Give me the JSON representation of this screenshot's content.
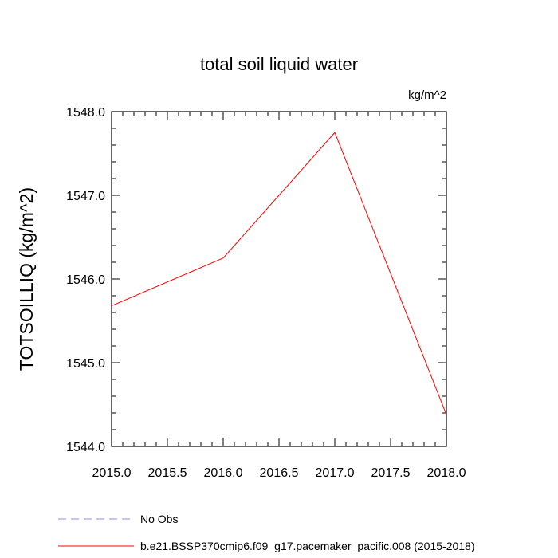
{
  "chart_data": {
    "type": "line",
    "title": "total soil liquid water",
    "units": "kg/m^2",
    "xlabel": "",
    "ylabel": "TOTSOILLIQ  (kg/m^2)",
    "xlim": [
      2015.0,
      2018.0
    ],
    "ylim": [
      1544.0,
      1548.0
    ],
    "xticks": [
      2015.0,
      2015.5,
      2016.0,
      2016.5,
      2017.0,
      2017.5,
      2018.0
    ],
    "xtick_labels": [
      "2015.0",
      "2015.5",
      "2016.0",
      "2016.5",
      "2017.0",
      "2017.5",
      "2018.0"
    ],
    "yticks": [
      1544.0,
      1545.0,
      1546.0,
      1547.0,
      1548.0
    ],
    "ytick_labels": [
      "1544.0",
      "1545.0",
      "1546.0",
      "1547.0",
      "1548.0"
    ],
    "grid": false,
    "legend_position": "bottom",
    "series": [
      {
        "name": "No Obs",
        "color": "#8c8cf0",
        "style": "dashed",
        "x": [],
        "y": []
      },
      {
        "name": "b.e21.BSSP370cmip6.f09_g17.pacemaker_pacific.008 (2015-2018)",
        "color": "#ff0000",
        "style": "solid",
        "x": [
          2015.0,
          2016.0,
          2017.0,
          2018.0
        ],
        "y": [
          1545.68,
          1546.25,
          1547.75,
          1544.38
        ]
      }
    ]
  }
}
